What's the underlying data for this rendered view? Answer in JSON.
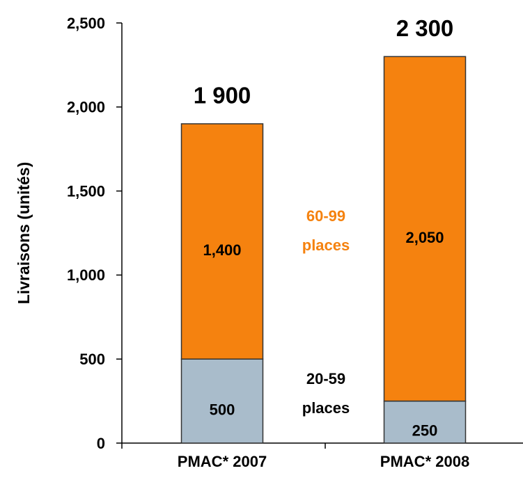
{
  "chart_data": {
    "type": "stacked_bar",
    "y_label": "Livraisons (unités)",
    "categories": [
      "PMAC* 2007",
      "PMAC* 2008"
    ],
    "series": [
      {
        "name": "20-59 places",
        "color": "#a9bccb",
        "values": [
          500,
          250
        ]
      },
      {
        "name": "60-99 places",
        "color": "#f5820f",
        "values": [
          1400,
          2050
        ],
        "value_labels": [
          "1,400",
          "2,050"
        ]
      }
    ],
    "totals": {
      "values": [
        1900,
        2300
      ],
      "value_labels": [
        "1 900",
        "2 300"
      ]
    },
    "ylim": [
      0,
      2500
    ],
    "yticks": [
      0,
      500,
      {
        "value": 1000,
        "label": "1,000"
      },
      {
        "value": 1500,
        "label": "1,500"
      },
      {
        "value": 2000,
        "label": "2,000"
      },
      {
        "value": 2500,
        "label": "2,500"
      }
    ],
    "grid": false
  }
}
